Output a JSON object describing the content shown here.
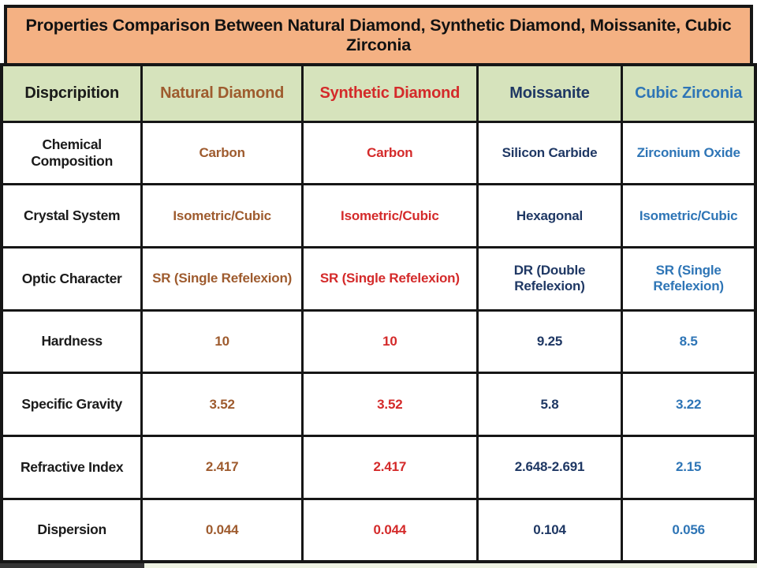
{
  "title": "Properties Comparison Between Natural Diamond, Synthetic Diamond, Moissanite, Cubic Zirconia",
  "colors": {
    "title_bg": "#F4B183",
    "header_bg": "#D6E3BC",
    "table_border": "#161616",
    "column_text": [
      "#1A1A1A",
      "#9E5B2E",
      "#D42A2A",
      "#1F3864",
      "#2E75B6"
    ],
    "bottom_strip_left": "#353535",
    "bottom_strip_right": "#EEF2E2"
  },
  "chart_data": {
    "type": "table",
    "title": "Properties Comparison Between Natural Diamond, Synthetic Diamond, Moissanite, Cubic Zirconia",
    "columns": [
      "Dispcripition",
      "Natural Diamond",
      "Synthetic Diamond",
      "Moissanite",
      "Cubic Zirconia"
    ],
    "rows": [
      {
        "property": "Chemical Composition",
        "values": [
          "Carbon",
          "Carbon",
          "Silicon Carbide",
          "Zirconium Oxide"
        ]
      },
      {
        "property": "Crystal System",
        "values": [
          "Isometric/Cubic",
          "Isometric/Cubic",
          "Hexagonal",
          "Isometric/Cubic"
        ]
      },
      {
        "property": "Optic Character",
        "values": [
          "SR (Single Refelexion)",
          "SR (Single Refelexion)",
          "DR (Double Refelexion)",
          "SR (Single Refelexion)"
        ]
      },
      {
        "property": "Hardness",
        "values": [
          "10",
          "10",
          "9.25",
          "8.5"
        ]
      },
      {
        "property": "Specific Gravity",
        "values": [
          "3.52",
          "3.52",
          "5.8",
          "3.22"
        ]
      },
      {
        "property": "Refractive Index",
        "values": [
          "2.417",
          "2.417",
          "2.648-2.691",
          "2.15"
        ]
      },
      {
        "property": "Dispersion",
        "values": [
          "0.044",
          "0.044",
          "0.104",
          "0.056"
        ]
      }
    ],
    "layout": {
      "column_width_pct": [
        18.6,
        21.3,
        23.2,
        19.2,
        17.7
      ],
      "grid": "black solid borders",
      "header_position": "top row"
    }
  }
}
